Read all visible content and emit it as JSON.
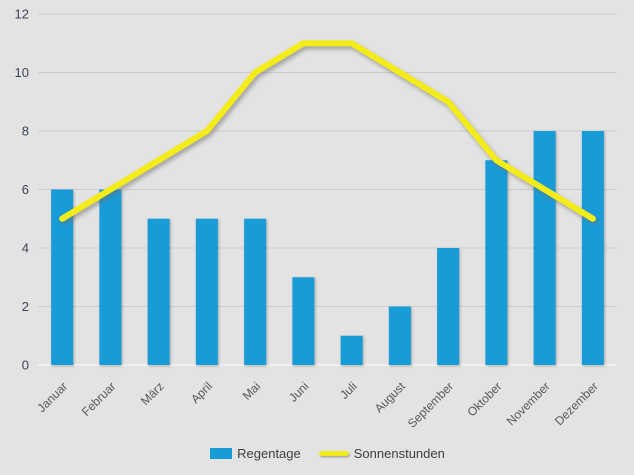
{
  "chart_data": {
    "type": "bar",
    "title": "",
    "xlabel": "",
    "ylabel": "",
    "categories": [
      "Januar",
      "Februar",
      "März",
      "April",
      "Mai",
      "Juni",
      "Juli",
      "August",
      "September",
      "Oktober",
      "November",
      "Dezember"
    ],
    "series": [
      {
        "name": "Regentage",
        "type": "bar",
        "color": "#189CD8",
        "values": [
          6,
          6,
          5,
          5,
          5,
          3,
          1,
          2,
          4,
          7,
          8,
          8
        ]
      },
      {
        "name": "Sonnenstunden",
        "type": "line",
        "color": "#F3EC19",
        "values": [
          5,
          6,
          7,
          8,
          10,
          11,
          11,
          10,
          9,
          7,
          6,
          5
        ]
      }
    ],
    "ylim": [
      0,
      12
    ],
    "yticks": [
      0,
      2,
      4,
      6,
      8,
      10,
      12
    ],
    "grid": true,
    "legend_position": "bottom"
  },
  "colors": {
    "background": "#E3E3E3",
    "gridline": "#CDCDCD",
    "zero_axis_line": "#F4F4F2",
    "tick_label": "#3D4554",
    "category_label": "#595959",
    "legend_text": "#404040"
  }
}
